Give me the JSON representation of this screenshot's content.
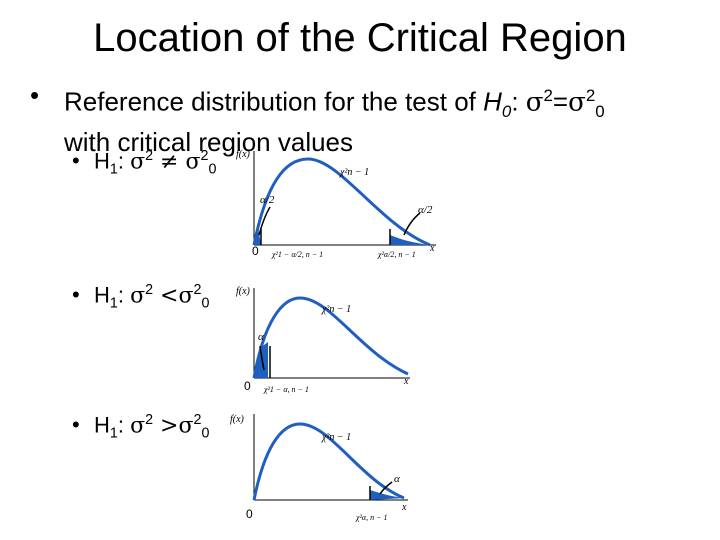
{
  "slide": {
    "title": "Location of the Critical Region",
    "main_bullet": {
      "prefix": "Reference distribution for the test of ",
      "h0": "H",
      "h0_sub": "0",
      "colon": ": ",
      "sigma": "σ",
      "sq": "2",
      "eq": "=",
      "sigma2": "σ",
      "sq2": "2",
      "sub0": "0",
      "line2": "with critical region values"
    },
    "cases": [
      {
        "h": "H",
        "hsub": "1",
        "colon": ": ",
        "sigma": "σ",
        "sq": "2",
        "op": " ≠ ",
        "sigma0": "σ",
        "sq0": "2",
        "sub0": "0"
      },
      {
        "h": "H",
        "hsub": "1",
        "colon": ": ",
        "sigma": "σ",
        "sq": "2",
        "op": " <",
        "sigma0": "σ",
        "sq0": "2",
        "sub0": "0"
      },
      {
        "h": "H",
        "hsub": "1",
        "colon": ": ",
        "sigma": "σ",
        "sq": "2",
        "op": " >",
        "sigma0": "σ",
        "sq0": "2",
        "sub0": "0"
      }
    ],
    "bullet_symbol": "•"
  },
  "plots": {
    "fx_label": "f(x)",
    "x_label": "x",
    "zero": "0",
    "two_sided": {
      "chi_label": "χ²n − 1",
      "alpha_left": "α/2",
      "alpha_right": "α/2",
      "crit_left": "χ²1 − α/2, n − 1",
      "crit_right": "χ²α/2, n − 1"
    },
    "lower": {
      "chi_label": "χ²n − 1",
      "alpha": "α",
      "crit": "χ²1 − α, n − 1"
    },
    "upper": {
      "chi_label": "χ²n − 1",
      "alpha": "α",
      "crit": "χ²α, n − 1"
    },
    "curve_color": "#1f5fbf"
  }
}
